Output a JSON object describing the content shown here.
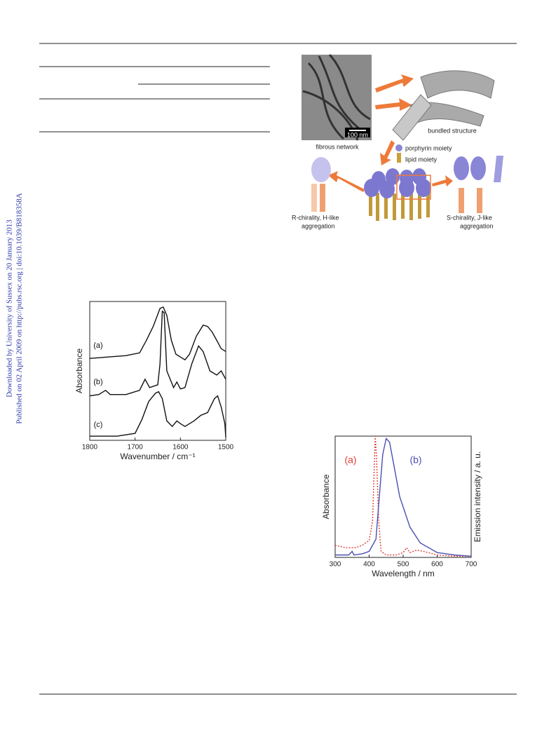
{
  "sidebar": {
    "line1": "Downloaded by University of Sussex on 20 January 2013",
    "line2": "Published on 02 April 2009 on http://pubs.rsc.org | doi:10.1039/B818358A"
  },
  "schematic": {
    "scale_bar": "100 nm",
    "fibrous": "fibrous network",
    "bundled": "bundled structure",
    "porphyrin": "porphyrin moiety",
    "lipid": "lipid moiety",
    "left_1": "R-chirality, H-like",
    "left_2": "aggregation",
    "right_1": "S-chirality, J-like",
    "right_2": "aggregation"
  },
  "chart_data": [
    {
      "type": "line",
      "x_label": "Wavenumber / cm⁻¹",
      "y_label": "Absorbance",
      "xlim": [
        1800,
        1500
      ],
      "xticks": [
        1800,
        1700,
        1600,
        1500
      ],
      "ylim": [
        0,
        1
      ],
      "series": [
        {
          "name": "(a)",
          "color": "#111111",
          "style": "solid",
          "x": [
            1800,
            1760,
            1720,
            1690,
            1675,
            1660,
            1645,
            1638,
            1630,
            1620,
            1610,
            1600,
            1590,
            1580,
            1565,
            1550,
            1540,
            1530,
            1520,
            1510,
            1500
          ],
          "values": [
            0.59,
            0.6,
            0.61,
            0.63,
            0.72,
            0.82,
            0.95,
            0.96,
            0.9,
            0.72,
            0.62,
            0.6,
            0.58,
            0.62,
            0.75,
            0.83,
            0.82,
            0.78,
            0.72,
            0.66,
            0.64
          ]
        },
        {
          "name": "(b)",
          "color": "#111111",
          "style": "solid",
          "x": [
            1800,
            1780,
            1765,
            1755,
            1720,
            1690,
            1678,
            1668,
            1650,
            1645,
            1640,
            1636,
            1630,
            1615,
            1608,
            1600,
            1590,
            1575,
            1560,
            1550,
            1535,
            1520,
            1510,
            1500
          ],
          "values": [
            0.32,
            0.33,
            0.36,
            0.33,
            0.33,
            0.36,
            0.44,
            0.38,
            0.4,
            0.55,
            0.93,
            0.92,
            0.5,
            0.38,
            0.42,
            0.37,
            0.38,
            0.55,
            0.68,
            0.64,
            0.5,
            0.47,
            0.5,
            0.44
          ]
        },
        {
          "name": "(c)",
          "color": "#111111",
          "style": "solid",
          "x": [
            1800,
            1740,
            1700,
            1685,
            1670,
            1655,
            1648,
            1640,
            1630,
            1618,
            1608,
            1600,
            1590,
            1570,
            1555,
            1540,
            1525,
            1518,
            1510,
            1502,
            1500
          ],
          "values": [
            0.03,
            0.03,
            0.05,
            0.15,
            0.28,
            0.34,
            0.35,
            0.3,
            0.14,
            0.1,
            0.14,
            0.12,
            0.1,
            0.14,
            0.18,
            0.2,
            0.3,
            0.32,
            0.24,
            0.12,
            0.02
          ]
        }
      ]
    },
    {
      "type": "line",
      "x_label": "Wavelength / nm",
      "y_label": "Absorbance",
      "y2_label": "Emission intensity / a. u.",
      "xlim": [
        300,
        700
      ],
      "xticks": [
        300,
        400,
        500,
        600,
        700
      ],
      "ylim": [
        0,
        1
      ],
      "series": [
        {
          "name": "(a)",
          "color": "#e0403a",
          "style": "dotted",
          "x": [
            300,
            330,
            360,
            380,
            400,
            410,
            415,
            418,
            422,
            428,
            435,
            450,
            480,
            500,
            510,
            520,
            540,
            560,
            600,
            650,
            700
          ],
          "values": [
            0.1,
            0.08,
            0.08,
            0.1,
            0.14,
            0.3,
            0.75,
            1,
            0.8,
            0.3,
            0.05,
            0.02,
            0.02,
            0.04,
            0.08,
            0.04,
            0.06,
            0.05,
            0.02,
            0.01,
            0.01
          ]
        },
        {
          "name": "(b)",
          "color": "#4a4fb0",
          "style": "solid",
          "x": [
            300,
            340,
            350,
            355,
            380,
            400,
            420,
            430,
            440,
            450,
            460,
            470,
            490,
            520,
            550,
            600,
            650,
            700
          ],
          "values": [
            0.02,
            0.02,
            0.05,
            0.02,
            0.03,
            0.05,
            0.15,
            0.5,
            0.85,
            0.98,
            0.95,
            0.8,
            0.5,
            0.25,
            0.12,
            0.04,
            0.02,
            0.01
          ]
        }
      ]
    }
  ]
}
